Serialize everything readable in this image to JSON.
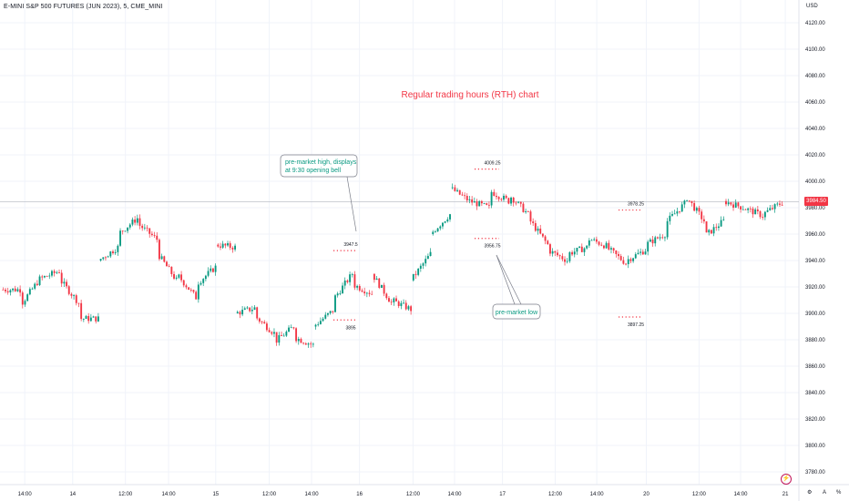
{
  "header": {
    "symbol_title": "E-MINI S&P 500 FUTURES (JUN 2023), 5, CME_MINI",
    "currency": "USD"
  },
  "annotations": {
    "chart_note": "Regular trading hours (RTH) chart",
    "callout_high_line1": "pre-market high, displays",
    "callout_high_line2": "at 9:30 opening bell",
    "callout_low": "pre-market low",
    "levels": [
      {
        "label": "3947.5",
        "price": 3947.5,
        "kind": "high"
      },
      {
        "label": "3895",
        "price": 3895,
        "kind": "low"
      },
      {
        "label": "4009.25",
        "price": 4009.25,
        "kind": "high"
      },
      {
        "label": "3956.75",
        "price": 3956.75,
        "kind": "low"
      },
      {
        "label": "3978.25",
        "price": 3978.25,
        "kind": "high"
      },
      {
        "label": "3897.25",
        "price": 3897.25,
        "kind": "low"
      }
    ]
  },
  "current_price_label": "3984.50",
  "corner_controls": {
    "settings": "⚙",
    "auto": "A",
    "zoom": "%"
  },
  "chart_data": {
    "type": "candlestick",
    "title": "E-MINI S&P 500 FUTURES (JUN 2023), 5, CME_MINI",
    "y_unit": "USD",
    "ylim": [
      3770,
      4130
    ],
    "y_ticks": [
      "4120.00",
      "4100.00",
      "4080.00",
      "4060.00",
      "4040.00",
      "4020.00",
      "4000.00",
      "3980.00",
      "3960.00",
      "3940.00",
      "3920.00",
      "3900.00",
      "3880.00",
      "3860.00",
      "3840.00",
      "3820.00",
      "3800.00",
      "3780.00"
    ],
    "x_ticks": [
      "14:00",
      "14",
      "12:00",
      "14:00",
      "15",
      "12:00",
      "14:00",
      "16",
      "12:00",
      "14:00",
      "17",
      "12:00",
      "14:00",
      "20",
      "12:00",
      "14:00",
      "21"
    ],
    "current_price": 3984.5,
    "grid": true,
    "price_path": [
      [
        3918,
        3918
      ],
      [
        3906,
        3926
      ],
      [
        3926,
        3932
      ],
      [
        3926,
        3908
      ],
      [
        3896,
        3896
      ],
      [
        3940,
        3950
      ],
      [
        3960,
        3972
      ],
      [
        3968,
        3956
      ],
      [
        3946,
        3925
      ],
      [
        3930,
        3912
      ],
      [
        3922,
        3935
      ],
      [
        3952,
        3950
      ],
      [
        3900,
        3904
      ],
      [
        3898,
        3885
      ],
      [
        3878,
        3890
      ],
      [
        3882,
        3876
      ],
      [
        3890,
        3902
      ],
      [
        3910,
        3930
      ],
      [
        3922,
        3915
      ],
      [
        3930,
        3908
      ],
      [
        3910,
        3903
      ],
      [
        3925,
        3945
      ],
      [
        3960,
        3975
      ],
      [
        3995,
        3985
      ],
      [
        3985,
        3980
      ],
      [
        3993,
        3985
      ],
      [
        3990,
        3975
      ],
      [
        3972,
        3952
      ],
      [
        3948,
        3940
      ],
      [
        3945,
        3950
      ],
      [
        3957,
        3951
      ],
      [
        3950,
        3938
      ],
      [
        3940,
        3948
      ],
      [
        3952,
        3960
      ],
      [
        3968,
        3983
      ],
      [
        3990,
        3970
      ],
      [
        3958,
        3970
      ],
      [
        3985,
        3980
      ],
      [
        3980,
        3974
      ],
      [
        3975,
        3984
      ]
    ]
  }
}
